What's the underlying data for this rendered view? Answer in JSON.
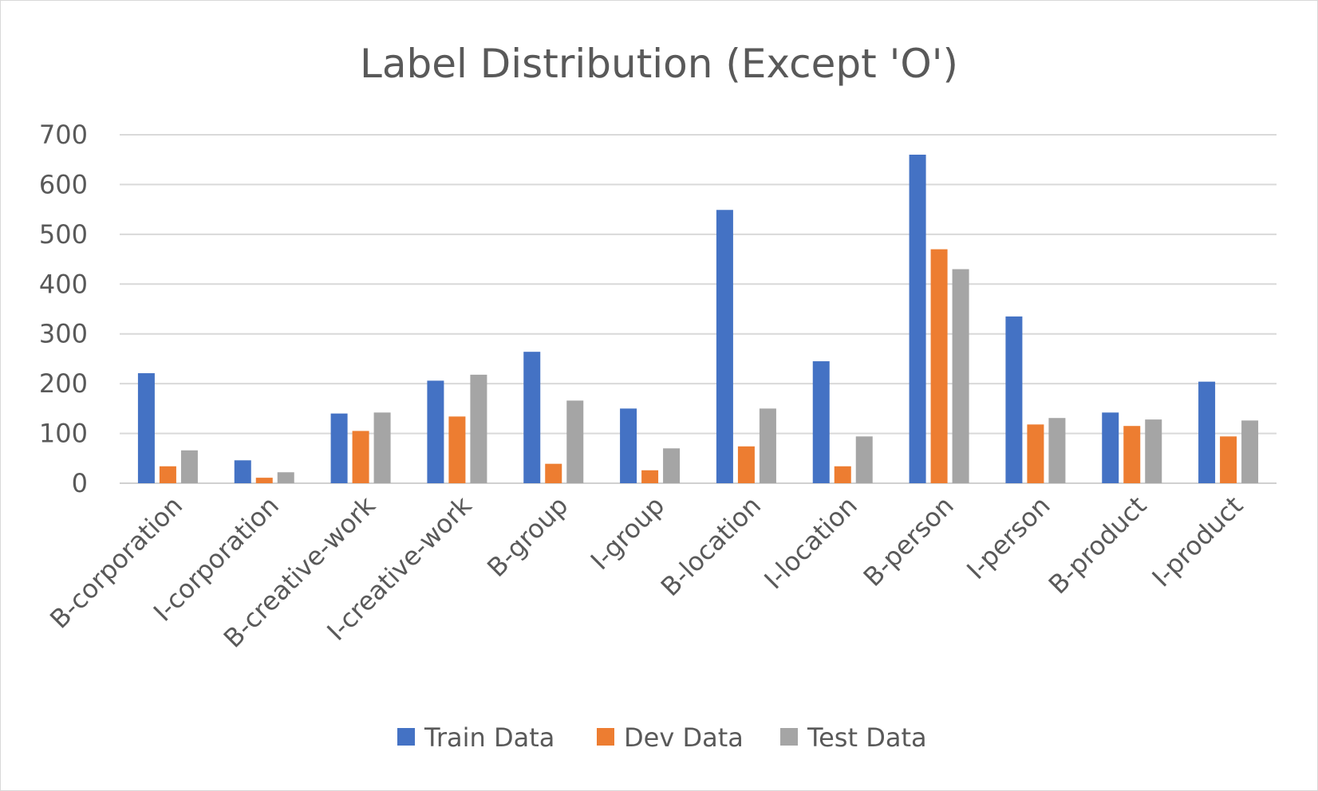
{
  "chart_data": {
    "type": "bar",
    "title": "Label Distribution (Except 'O')",
    "xlabel": "",
    "ylabel": "",
    "ylim": [
      0,
      700
    ],
    "yticks": [
      0,
      100,
      200,
      300,
      400,
      500,
      600,
      700
    ],
    "grid": true,
    "legend_position": "bottom",
    "categories": [
      "B-corporation",
      "I-corporation",
      "B-creative-work",
      "I-creative-work",
      "B-group",
      "I-group",
      "B-location",
      "I-location",
      "B-person",
      "I-person",
      "B-product",
      "I-product"
    ],
    "series": [
      {
        "name": "Train Data",
        "color": "#4472c4",
        "values": [
          221,
          46,
          140,
          206,
          264,
          150,
          549,
          245,
          660,
          335,
          142,
          204
        ]
      },
      {
        "name": "Dev Data",
        "color": "#ed7d31",
        "values": [
          34,
          11,
          105,
          134,
          39,
          26,
          74,
          34,
          470,
          118,
          115,
          94
        ]
      },
      {
        "name": "Test Data",
        "color": "#a5a5a5",
        "values": [
          66,
          22,
          142,
          218,
          166,
          70,
          150,
          94,
          430,
          131,
          128,
          126
        ]
      }
    ]
  }
}
